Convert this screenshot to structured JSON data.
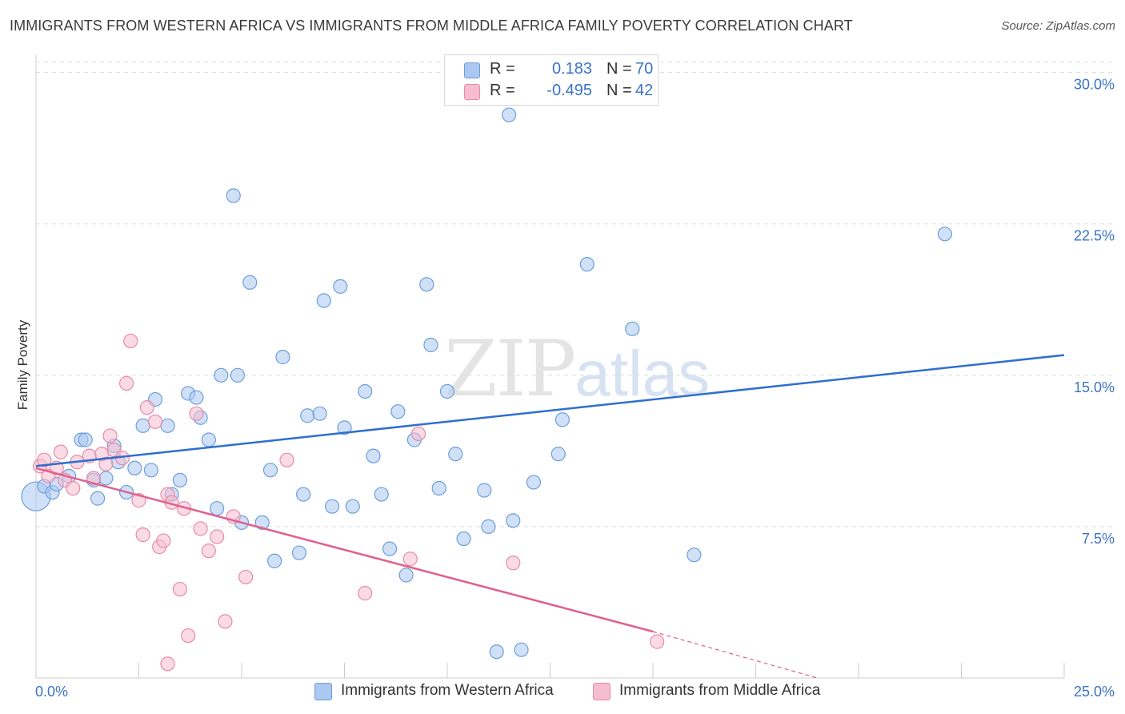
{
  "header": {
    "title": "IMMIGRANTS FROM WESTERN AFRICA VS IMMIGRANTS FROM MIDDLE AFRICA FAMILY POVERTY CORRELATION CHART",
    "source": "Source: ZipAtlas.com"
  },
  "watermark": {
    "zip": "ZIP",
    "atlas": "atlas"
  },
  "legend": {
    "r_label": "R =",
    "n_label": "N =",
    "rows": [
      {
        "r": "0.183",
        "n": "70"
      },
      {
        "r": "-0.495",
        "n": "42"
      }
    ]
  },
  "bottom_legend": {
    "western": "Immigrants from Western Africa",
    "middle": "Immigrants from Middle Africa"
  },
  "colors": {
    "blue_fill": "#aac8f0",
    "blue_stroke": "#6d9ddc",
    "blue_line": "#2f6fce",
    "pink_fill": "#f6bdd0",
    "pink_stroke": "#e88aa8",
    "pink_line": "#e0608e",
    "tick_text": "#3b73c6",
    "grid": "#dddddd"
  },
  "chart_data": {
    "type": "scatter",
    "title": "IMMIGRANTS FROM WESTERN AFRICA VS IMMIGRANTS FROM MIDDLE AFRICA FAMILY POVERTY CORRELATION CHART",
    "xlabel": "",
    "ylabel": "Family Poverty",
    "xlim": [
      0,
      25
    ],
    "ylim": [
      0,
      30.5
    ],
    "x_tick_labels": [
      "0.0%",
      "25.0%"
    ],
    "y_ticks": [
      7.5,
      15.0,
      22.5,
      30.0
    ],
    "y_tick_labels": [
      "7.5%",
      "15.0%",
      "22.5%",
      "30.0%"
    ],
    "grid": "horizontal dashed",
    "legend_position": "top-center",
    "series": [
      {
        "name": "Immigrants from Western Africa",
        "points": [
          [
            0.0,
            9.0
          ],
          [
            0.2,
            9.5
          ],
          [
            0.4,
            9.2
          ],
          [
            0.5,
            9.6
          ],
          [
            0.8,
            10.0
          ],
          [
            1.1,
            11.8
          ],
          [
            1.2,
            11.8
          ],
          [
            1.4,
            9.8
          ],
          [
            1.5,
            8.9
          ],
          [
            1.7,
            9.9
          ],
          [
            1.9,
            11.5
          ],
          [
            2.0,
            10.7
          ],
          [
            2.2,
            9.2
          ],
          [
            2.4,
            10.4
          ],
          [
            2.6,
            12.5
          ],
          [
            2.8,
            10.3
          ],
          [
            2.9,
            13.8
          ],
          [
            3.2,
            12.5
          ],
          [
            3.3,
            9.1
          ],
          [
            3.5,
            9.8
          ],
          [
            3.7,
            14.1
          ],
          [
            3.9,
            13.9
          ],
          [
            4.0,
            12.9
          ],
          [
            4.2,
            11.8
          ],
          [
            4.4,
            8.4
          ],
          [
            4.5,
            15.0
          ],
          [
            4.8,
            23.9
          ],
          [
            4.9,
            15.0
          ],
          [
            5.0,
            7.7
          ],
          [
            5.2,
            19.6
          ],
          [
            5.5,
            7.7
          ],
          [
            5.7,
            10.3
          ],
          [
            5.8,
            5.8
          ],
          [
            6.0,
            15.9
          ],
          [
            6.4,
            6.2
          ],
          [
            6.5,
            9.1
          ],
          [
            6.6,
            13.0
          ],
          [
            6.9,
            13.1
          ],
          [
            7.0,
            18.7
          ],
          [
            7.2,
            8.5
          ],
          [
            7.4,
            19.4
          ],
          [
            7.5,
            12.4
          ],
          [
            7.7,
            8.5
          ],
          [
            8.0,
            14.2
          ],
          [
            8.2,
            11.0
          ],
          [
            8.4,
            9.1
          ],
          [
            8.6,
            6.4
          ],
          [
            8.8,
            13.2
          ],
          [
            9.0,
            5.1
          ],
          [
            9.2,
            11.8
          ],
          [
            9.5,
            19.5
          ],
          [
            9.6,
            16.5
          ],
          [
            9.8,
            9.4
          ],
          [
            10.0,
            14.2
          ],
          [
            10.2,
            11.1
          ],
          [
            10.4,
            6.9
          ],
          [
            10.9,
            9.3
          ],
          [
            11.0,
            7.5
          ],
          [
            11.2,
            1.3
          ],
          [
            11.3,
            29.0
          ],
          [
            11.5,
            27.9
          ],
          [
            11.6,
            7.8
          ],
          [
            11.8,
            1.4
          ],
          [
            12.1,
            9.7
          ],
          [
            12.7,
            11.1
          ],
          [
            12.8,
            12.8
          ],
          [
            13.4,
            20.5
          ],
          [
            14.5,
            17.3
          ],
          [
            16.0,
            6.1
          ],
          [
            22.1,
            22.0
          ]
        ]
      },
      {
        "name": "Immigrants from Middle Africa",
        "points": [
          [
            0.1,
            10.5
          ],
          [
            0.2,
            10.8
          ],
          [
            0.3,
            10.0
          ],
          [
            0.5,
            10.4
          ],
          [
            0.6,
            11.2
          ],
          [
            0.7,
            9.8
          ],
          [
            0.9,
            9.4
          ],
          [
            1.0,
            10.7
          ],
          [
            1.3,
            11.0
          ],
          [
            1.4,
            9.9
          ],
          [
            1.6,
            11.1
          ],
          [
            1.7,
            10.6
          ],
          [
            1.8,
            12.0
          ],
          [
            1.9,
            11.3
          ],
          [
            2.1,
            10.9
          ],
          [
            2.2,
            14.6
          ],
          [
            2.3,
            16.7
          ],
          [
            2.5,
            8.8
          ],
          [
            2.6,
            7.1
          ],
          [
            2.7,
            13.4
          ],
          [
            2.9,
            12.7
          ],
          [
            3.0,
            6.5
          ],
          [
            3.1,
            6.8
          ],
          [
            3.2,
            9.1
          ],
          [
            3.3,
            8.7
          ],
          [
            3.5,
            4.4
          ],
          [
            3.6,
            8.4
          ],
          [
            3.7,
            2.1
          ],
          [
            3.9,
            13.1
          ],
          [
            4.0,
            7.4
          ],
          [
            4.2,
            6.3
          ],
          [
            4.4,
            7.0
          ],
          [
            4.6,
            2.8
          ],
          [
            4.8,
            8.0
          ],
          [
            5.1,
            5.0
          ],
          [
            6.1,
            10.8
          ],
          [
            8.0,
            4.2
          ],
          [
            9.1,
            5.9
          ],
          [
            9.3,
            12.1
          ],
          [
            11.6,
            5.7
          ],
          [
            15.1,
            1.8
          ],
          [
            3.2,
            0.7
          ]
        ]
      }
    ],
    "trendlines": [
      {
        "series": "Immigrants from Western Africa",
        "from": [
          0,
          10.5
        ],
        "to": [
          25,
          16.0
        ]
      },
      {
        "series": "Immigrants from Middle Africa",
        "from": [
          0,
          10.4
        ],
        "to": [
          15.0,
          2.3
        ],
        "dashed_to": [
          19.0,
          0.0
        ]
      }
    ]
  }
}
